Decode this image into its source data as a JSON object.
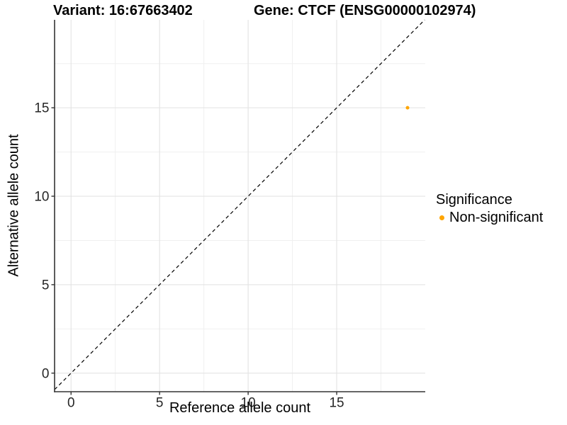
{
  "chart_data": {
    "type": "scatter",
    "titles": {
      "variant": "Variant: 16:67663402",
      "gene": "Gene: CTCF (ENSG00000102974)"
    },
    "xlabel": "Reference allele count",
    "ylabel": "Alternative allele count",
    "xlim": [
      -0.93,
      20.0
    ],
    "ylim": [
      -1.05,
      19.97
    ],
    "x_ticks": [
      0,
      5,
      10,
      15
    ],
    "y_ticks": [
      0,
      5,
      10,
      15
    ],
    "x_minor_ticks": [
      2.5,
      7.5,
      12.5,
      17.5
    ],
    "y_minor_ticks": [
      2.5,
      7.5,
      12.5,
      17.5
    ],
    "grid": "major+minor",
    "identity_line": {
      "style": "dashed",
      "slope": 1,
      "intercept": 0,
      "color": "#000000"
    },
    "series": [
      {
        "name": "Non-significant",
        "color": "#FFA500",
        "points": [
          {
            "x": 19,
            "y": 15
          }
        ]
      }
    ],
    "legend": {
      "title": "Significance",
      "position": "right",
      "items": [
        {
          "label": "Non-significant",
          "color": "#FFA500"
        }
      ]
    },
    "theme": {
      "axis_line_color": "#333333",
      "tick_color": "#333333",
      "tick_label_color": "#262626",
      "major_grid_color": "#E3E3E3",
      "minor_grid_color": "#F0F0F0",
      "panel_background": "#FFFFFF"
    }
  }
}
